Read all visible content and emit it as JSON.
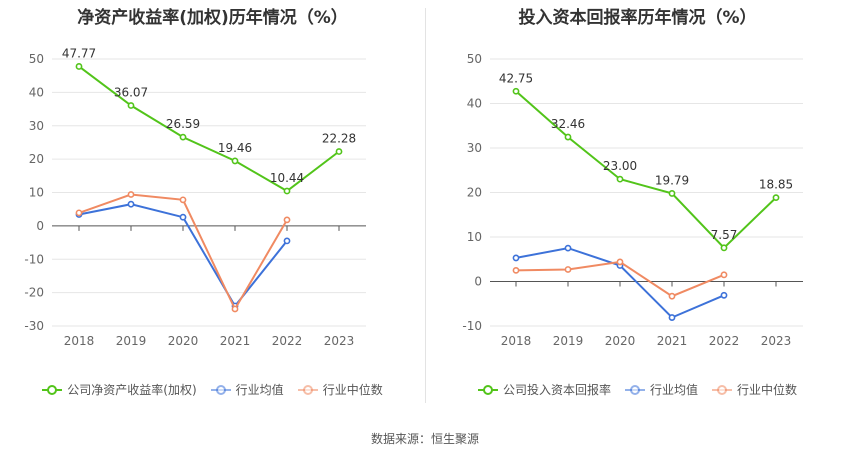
{
  "charts": [
    {
      "id": "left",
      "title": "净资产收益率(加权)历年情况（%）",
      "chart_data": {
        "type": "line",
        "categories": [
          "2018",
          "2019",
          "2020",
          "2021",
          "2022",
          "2023"
        ],
        "ylim": [
          -30,
          50
        ],
        "yticks": [
          50,
          40,
          30,
          20,
          10,
          0,
          -10,
          -20,
          -30
        ],
        "grid": true,
        "legend_position": "bottom",
        "series": [
          {
            "name": "公司净资产收益率(加权)",
            "color": "#52c41a",
            "values": [
              47.77,
              36.07,
              26.59,
              19.46,
              10.44,
              22.28
            ],
            "labels": [
              "47.77",
              "36.07",
              "26.59",
              "19.46",
              "10.44",
              "22.28"
            ]
          },
          {
            "name": "行业均值",
            "color": "#3d72d9",
            "values": [
              3.4,
              6.5,
              2.6,
              -24.0,
              -4.5,
              null
            ]
          },
          {
            "name": "行业中位数",
            "color": "#f08a62",
            "values": [
              3.9,
              9.4,
              7.8,
              -24.9,
              1.8,
              null
            ]
          }
        ]
      }
    },
    {
      "id": "right",
      "title": "投入资本回报率历年情况（%）",
      "chart_data": {
        "type": "line",
        "categories": [
          "2018",
          "2019",
          "2020",
          "2021",
          "2022",
          "2023"
        ],
        "ylim": [
          -10,
          50
        ],
        "yticks": [
          50,
          40,
          30,
          20,
          10,
          0,
          -10
        ],
        "grid": true,
        "legend_position": "bottom",
        "series": [
          {
            "name": "公司投入资本回报率",
            "color": "#52c41a",
            "values": [
              42.75,
              32.46,
              23.0,
              19.79,
              7.57,
              18.85
            ],
            "labels": [
              "42.75",
              "32.46",
              "23.00",
              "19.79",
              "7.57",
              "18.85"
            ]
          },
          {
            "name": "行业均值",
            "color": "#3d72d9",
            "values": [
              5.3,
              7.5,
              3.6,
              -8.1,
              -3.1,
              null
            ]
          },
          {
            "name": "行业中位数",
            "color": "#f08a62",
            "values": [
              2.5,
              2.7,
              4.4,
              -3.3,
              1.5,
              null
            ]
          }
        ]
      }
    }
  ],
  "source": "数据来源：恒生聚源"
}
